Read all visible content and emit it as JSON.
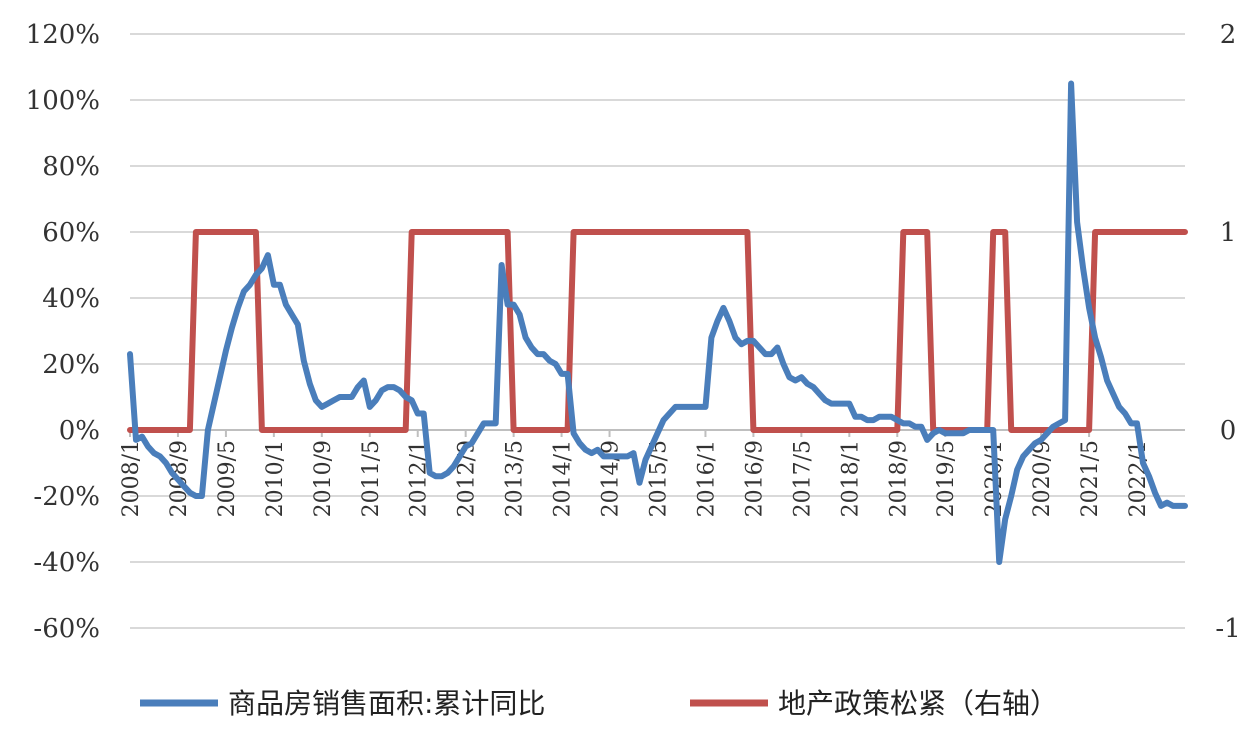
{
  "chart_data": {
    "type": "line",
    "colors": {
      "sales": "#4a7ebb",
      "policy": "#c0504d",
      "grid": "#d9d9d9",
      "axis": "#bfbfbf"
    },
    "y_left": {
      "ticks": [
        "-60%",
        "-40%",
        "-20%",
        "0%",
        "20%",
        "40%",
        "60%",
        "80%",
        "100%",
        "120%"
      ],
      "min": -60,
      "max": 120,
      "step": 20
    },
    "y_right": {
      "ticks": [
        "-1",
        "0",
        "1",
        "2"
      ],
      "min": -1,
      "max": 2,
      "step": 1
    },
    "x_ticks": [
      "2008/1",
      "2008/9",
      "2009/5",
      "2010/1",
      "2010/9",
      "2011/5",
      "2012/1",
      "2012/9",
      "2013/5",
      "2014/1",
      "2014/9",
      "2015/5",
      "2016/1",
      "2016/9",
      "2017/5",
      "2018/1",
      "2018/9",
      "2019/5",
      "2020/1",
      "2020/9",
      "2021/5",
      "2022/1"
    ],
    "x_range": [
      "2008-01",
      "2022-09"
    ],
    "grid": true,
    "legend_position": "bottom",
    "series": [
      {
        "name": "商品房销售面积:累计同比",
        "axis": "left",
        "points": [
          [
            "2008-01",
            23
          ],
          [
            "2008-02",
            -3
          ],
          [
            "2008-03",
            -2
          ],
          [
            "2008-04",
            -5
          ],
          [
            "2008-05",
            -7
          ],
          [
            "2008-06",
            -8
          ],
          [
            "2008-07",
            -10
          ],
          [
            "2008-08",
            -13
          ],
          [
            "2008-09",
            -15
          ],
          [
            "2008-10",
            -17
          ],
          [
            "2008-11",
            -19
          ],
          [
            "2008-12",
            -20
          ],
          [
            "2009-01",
            -20
          ],
          [
            "2009-02",
            0
          ],
          [
            "2009-03",
            8
          ],
          [
            "2009-04",
            16
          ],
          [
            "2009-05",
            24
          ],
          [
            "2009-06",
            31
          ],
          [
            "2009-07",
            37
          ],
          [
            "2009-08",
            42
          ],
          [
            "2009-09",
            44
          ],
          [
            "2009-10",
            47
          ],
          [
            "2009-11",
            49
          ],
          [
            "2009-12",
            53
          ],
          [
            "2010-01",
            44
          ],
          [
            "2010-02",
            44
          ],
          [
            "2010-03",
            38
          ],
          [
            "2010-04",
            35
          ],
          [
            "2010-05",
            32
          ],
          [
            "2010-06",
            21
          ],
          [
            "2010-07",
            14
          ],
          [
            "2010-08",
            9
          ],
          [
            "2010-09",
            7
          ],
          [
            "2010-10",
            8
          ],
          [
            "2010-11",
            9
          ],
          [
            "2010-12",
            10
          ],
          [
            "2011-01",
            10
          ],
          [
            "2011-02",
            10
          ],
          [
            "2011-03",
            13
          ],
          [
            "2011-04",
            15
          ],
          [
            "2011-05",
            7
          ],
          [
            "2011-06",
            9
          ],
          [
            "2011-07",
            12
          ],
          [
            "2011-08",
            13
          ],
          [
            "2011-09",
            13
          ],
          [
            "2011-10",
            12
          ],
          [
            "2011-11",
            10
          ],
          [
            "2011-12",
            9
          ],
          [
            "2012-01",
            5
          ],
          [
            "2012-02",
            5
          ],
          [
            "2012-03",
            -13
          ],
          [
            "2012-04",
            -14
          ],
          [
            "2012-05",
            -14
          ],
          [
            "2012-06",
            -13
          ],
          [
            "2012-07",
            -11
          ],
          [
            "2012-08",
            -8
          ],
          [
            "2012-09",
            -5
          ],
          [
            "2012-10",
            -4
          ],
          [
            "2012-11",
            -1
          ],
          [
            "2012-12",
            2
          ],
          [
            "2013-01",
            2
          ],
          [
            "2013-02",
            2
          ],
          [
            "2013-03",
            50
          ],
          [
            "2013-04",
            38
          ],
          [
            "2013-05",
            38
          ],
          [
            "2013-06",
            35
          ],
          [
            "2013-07",
            28
          ],
          [
            "2013-08",
            25
          ],
          [
            "2013-09",
            23
          ],
          [
            "2013-10",
            23
          ],
          [
            "2013-11",
            21
          ],
          [
            "2013-12",
            20
          ],
          [
            "2014-01",
            17
          ],
          [
            "2014-02",
            17
          ],
          [
            "2014-03",
            -1
          ],
          [
            "2014-04",
            -4
          ],
          [
            "2014-05",
            -6
          ],
          [
            "2014-06",
            -7
          ],
          [
            "2014-07",
            -6
          ],
          [
            "2014-08",
            -8
          ],
          [
            "2014-09",
            -8
          ],
          [
            "2014-10",
            -8
          ],
          [
            "2014-11",
            -8
          ],
          [
            "2014-12",
            -8
          ],
          [
            "2015-01",
            -7
          ],
          [
            "2015-02",
            -16
          ],
          [
            "2015-03",
            -9
          ],
          [
            "2015-04",
            -5
          ],
          [
            "2015-05",
            -1
          ],
          [
            "2015-06",
            3
          ],
          [
            "2015-07",
            5
          ],
          [
            "2015-08",
            7
          ],
          [
            "2015-09",
            7
          ],
          [
            "2015-10",
            7
          ],
          [
            "2015-11",
            7
          ],
          [
            "2015-12",
            7
          ],
          [
            "2016-01",
            7
          ],
          [
            "2016-02",
            28
          ],
          [
            "2016-03",
            33
          ],
          [
            "2016-04",
            37
          ],
          [
            "2016-05",
            33
          ],
          [
            "2016-06",
            28
          ],
          [
            "2016-07",
            26
          ],
          [
            "2016-08",
            27
          ],
          [
            "2016-09",
            27
          ],
          [
            "2016-10",
            25
          ],
          [
            "2016-11",
            23
          ],
          [
            "2016-12",
            23
          ],
          [
            "2017-01",
            25
          ],
          [
            "2017-02",
            20
          ],
          [
            "2017-03",
            16
          ],
          [
            "2017-04",
            15
          ],
          [
            "2017-05",
            16
          ],
          [
            "2017-06",
            14
          ],
          [
            "2017-07",
            13
          ],
          [
            "2017-08",
            11
          ],
          [
            "2017-09",
            9
          ],
          [
            "2017-10",
            8
          ],
          [
            "2017-11",
            8
          ],
          [
            "2017-12",
            8
          ],
          [
            "2018-01",
            8
          ],
          [
            "2018-02",
            4
          ],
          [
            "2018-03",
            4
          ],
          [
            "2018-04",
            3
          ],
          [
            "2018-05",
            3
          ],
          [
            "2018-06",
            4
          ],
          [
            "2018-07",
            4
          ],
          [
            "2018-08",
            4
          ],
          [
            "2018-09",
            3
          ],
          [
            "2018-10",
            2
          ],
          [
            "2018-11",
            2
          ],
          [
            "2018-12",
            1
          ],
          [
            "2019-01",
            1
          ],
          [
            "2019-02",
            -3
          ],
          [
            "2019-03",
            -1
          ],
          [
            "2019-04",
            0
          ],
          [
            "2019-05",
            -1
          ],
          [
            "2019-06",
            -1
          ],
          [
            "2019-07",
            -1
          ],
          [
            "2019-08",
            -1
          ],
          [
            "2019-09",
            0
          ],
          [
            "2019-10",
            0
          ],
          [
            "2019-11",
            0
          ],
          [
            "2019-12",
            0
          ],
          [
            "2020-01",
            0
          ],
          [
            "2020-02",
            -40
          ],
          [
            "2020-03",
            -27
          ],
          [
            "2020-04",
            -20
          ],
          [
            "2020-05",
            -12
          ],
          [
            "2020-06",
            -8
          ],
          [
            "2020-07",
            -6
          ],
          [
            "2020-08",
            -4
          ],
          [
            "2020-09",
            -3
          ],
          [
            "2020-10",
            -1
          ],
          [
            "2020-11",
            1
          ],
          [
            "2020-12",
            2
          ],
          [
            "2021-01",
            3
          ],
          [
            "2021-02",
            105
          ],
          [
            "2021-03",
            63
          ],
          [
            "2021-04",
            49
          ],
          [
            "2021-05",
            37
          ],
          [
            "2021-06",
            28
          ],
          [
            "2021-07",
            22
          ],
          [
            "2021-08",
            15
          ],
          [
            "2021-09",
            11
          ],
          [
            "2021-10",
            7
          ],
          [
            "2021-11",
            5
          ],
          [
            "2021-12",
            2
          ],
          [
            "2022-01",
            2
          ],
          [
            "2022-02",
            -10
          ],
          [
            "2022-03",
            -14
          ],
          [
            "2022-04",
            -19
          ],
          [
            "2022-05",
            -23
          ],
          [
            "2022-06",
            -22
          ],
          [
            "2022-07",
            -23
          ],
          [
            "2022-08",
            -23
          ],
          [
            "2022-09",
            -23
          ]
        ]
      },
      {
        "name": "地产政策松紧（右轴）",
        "axis": "right",
        "points": [
          [
            "2008-01",
            0
          ],
          [
            "2008-11",
            0
          ],
          [
            "2008-12",
            1
          ],
          [
            "2009-10",
            1
          ],
          [
            "2009-11",
            0
          ],
          [
            "2011-11",
            0
          ],
          [
            "2011-12",
            1
          ],
          [
            "2013-04",
            1
          ],
          [
            "2013-05",
            0
          ],
          [
            "2014-02",
            0
          ],
          [
            "2014-03",
            1
          ],
          [
            "2016-08",
            1
          ],
          [
            "2016-09",
            0
          ],
          [
            "2018-09",
            0
          ],
          [
            "2018-10",
            1
          ],
          [
            "2019-02",
            1
          ],
          [
            "2019-03",
            0
          ],
          [
            "2019-12",
            0
          ],
          [
            "2020-01",
            1
          ],
          [
            "2020-03",
            1
          ],
          [
            "2020-04",
            0
          ],
          [
            "2021-05",
            0
          ],
          [
            "2021-06",
            1
          ],
          [
            "2022-09",
            1
          ]
        ]
      }
    ]
  }
}
